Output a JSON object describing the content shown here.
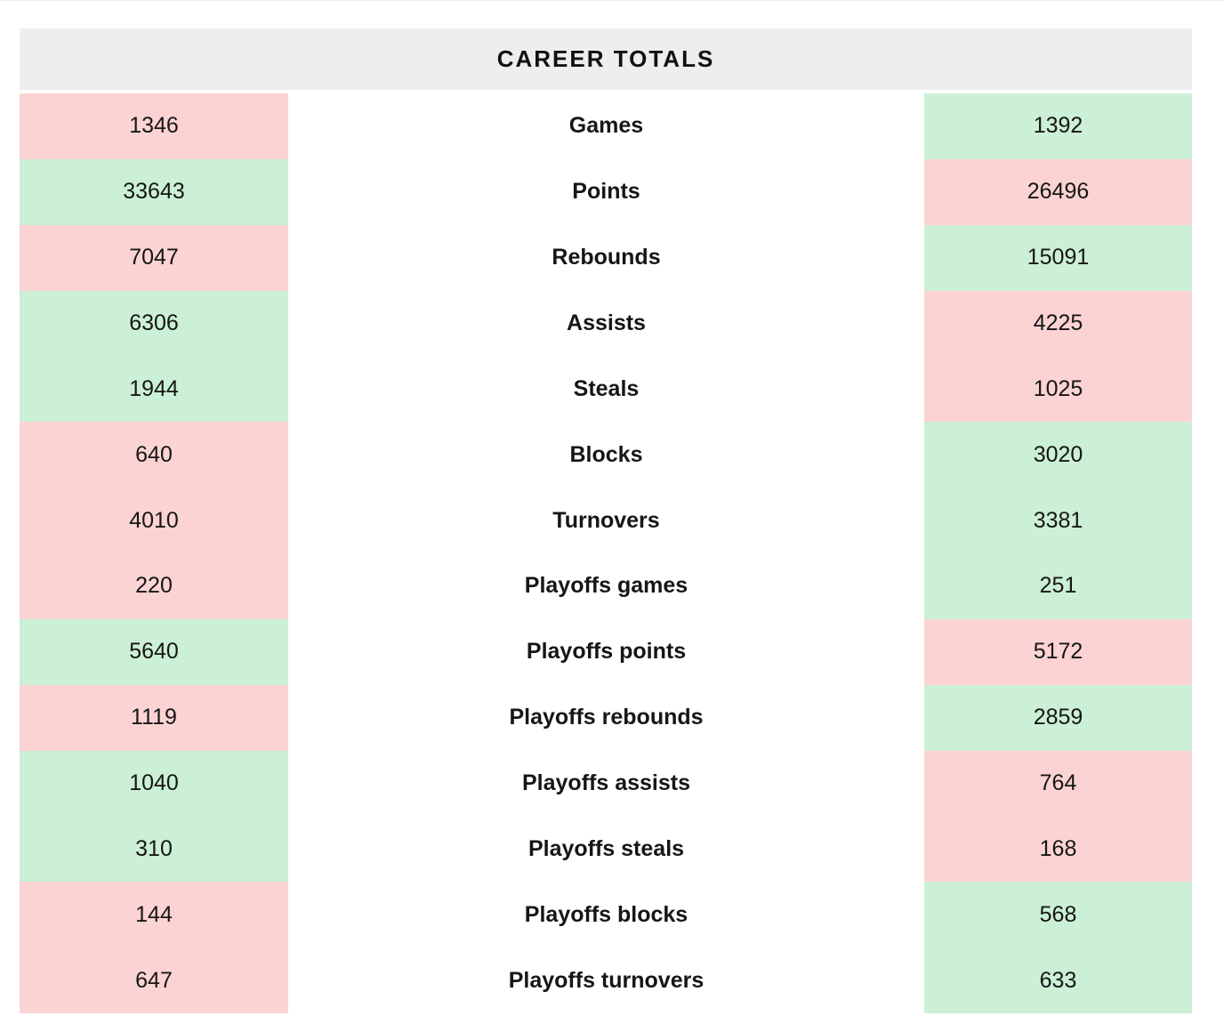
{
  "header": {
    "title": "CAREER TOTALS"
  },
  "colors": {
    "red": "#fcd3d3",
    "green": "#cbf0d5",
    "header_bg": "#eeeef0",
    "text": "#161616"
  },
  "chart_data": {
    "type": "table",
    "title": "CAREER TOTALS",
    "columns": [
      "left_player_total",
      "stat_label",
      "right_player_total"
    ],
    "highlight_legend": {
      "green": "better value",
      "red": "worse value"
    },
    "rows": [
      {
        "label": "Games",
        "left": {
          "value": "1346",
          "color": "red"
        },
        "right": {
          "value": "1392",
          "color": "green"
        }
      },
      {
        "label": "Points",
        "left": {
          "value": "33643",
          "color": "green"
        },
        "right": {
          "value": "26496",
          "color": "red"
        }
      },
      {
        "label": "Rebounds",
        "left": {
          "value": "7047",
          "color": "red"
        },
        "right": {
          "value": "15091",
          "color": "green"
        }
      },
      {
        "label": "Assists",
        "left": {
          "value": "6306",
          "color": "green"
        },
        "right": {
          "value": "4225",
          "color": "red"
        }
      },
      {
        "label": "Steals",
        "left": {
          "value": "1944",
          "color": "green"
        },
        "right": {
          "value": "1025",
          "color": "red"
        }
      },
      {
        "label": "Blocks",
        "left": {
          "value": "640",
          "color": "red"
        },
        "right": {
          "value": "3020",
          "color": "green"
        }
      },
      {
        "label": "Turnovers",
        "left": {
          "value": "4010",
          "color": "red"
        },
        "right": {
          "value": "3381",
          "color": "green"
        }
      },
      {
        "label": "Playoffs games",
        "left": {
          "value": "220",
          "color": "red"
        },
        "right": {
          "value": "251",
          "color": "green"
        }
      },
      {
        "label": "Playoffs points",
        "left": {
          "value": "5640",
          "color": "green"
        },
        "right": {
          "value": "5172",
          "color": "red"
        }
      },
      {
        "label": "Playoffs rebounds",
        "left": {
          "value": "1119",
          "color": "red"
        },
        "right": {
          "value": "2859",
          "color": "green"
        }
      },
      {
        "label": "Playoffs assists",
        "left": {
          "value": "1040",
          "color": "green"
        },
        "right": {
          "value": "764",
          "color": "red"
        }
      },
      {
        "label": "Playoffs steals",
        "left": {
          "value": "310",
          "color": "green"
        },
        "right": {
          "value": "168",
          "color": "red"
        }
      },
      {
        "label": "Playoffs blocks",
        "left": {
          "value": "144",
          "color": "red"
        },
        "right": {
          "value": "568",
          "color": "green"
        }
      },
      {
        "label": "Playoffs turnovers",
        "left": {
          "value": "647",
          "color": "red"
        },
        "right": {
          "value": "633",
          "color": "green"
        }
      }
    ]
  }
}
